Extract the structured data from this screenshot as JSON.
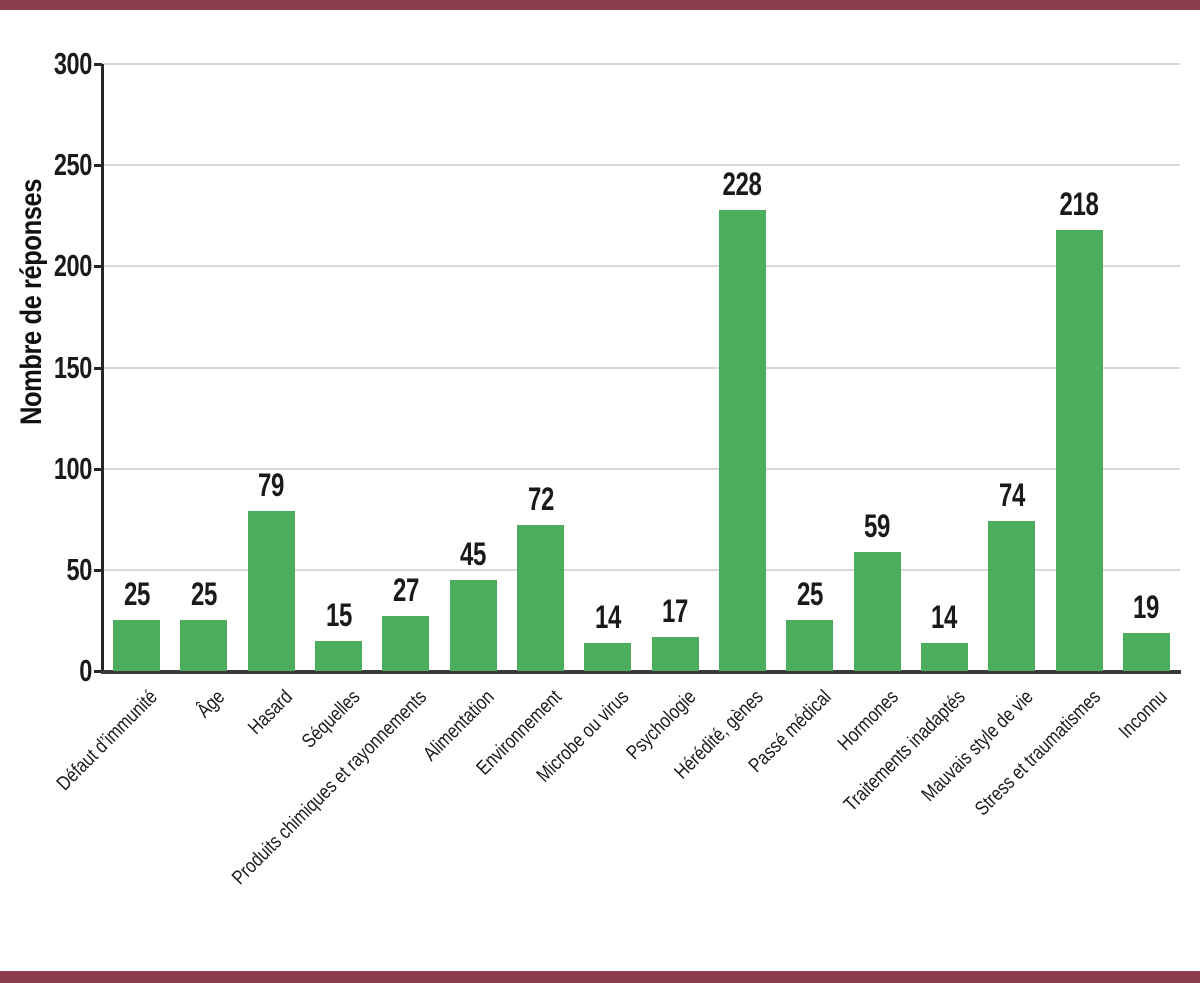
{
  "page": {
    "background": "#FFFFFF",
    "top_border_color": "#8C3D4D",
    "bottom_border_color": "#8C3D4D"
  },
  "chart_data": {
    "type": "bar",
    "title": "",
    "xlabel": "",
    "ylabel": "Nombre de réponses",
    "categories": [
      "Défaut d’immunité",
      "Âge",
      "Hasard",
      "Séquelles",
      "Produits chimiques et rayonnements",
      "Alimentation",
      "Environnement",
      "Microbe ou virus",
      "Psychologie",
      "Hérédité, gènes",
      "Passé médical",
      "Hormones",
      "Traitements inadaptés",
      "Mauvais style de vie",
      "Stress et traumatismes",
      "Inconnu"
    ],
    "values": [
      25,
      25,
      79,
      15,
      27,
      45,
      72,
      14,
      17,
      228,
      25,
      59,
      14,
      74,
      218,
      19
    ],
    "bar_value_labels_shown": true,
    "ylim": [
      0,
      300
    ],
    "yticks": [
      0,
      50,
      100,
      150,
      200,
      250,
      300
    ],
    "grid": "horizontal",
    "legend": false,
    "category_label_rotation_deg": 45,
    "colors": {
      "bar": "#4CAE5C",
      "grid_line": "#D8D8D8",
      "axis": "#262626",
      "x_axis": "#3A3A3A",
      "text": "#1A1A1A"
    }
  }
}
